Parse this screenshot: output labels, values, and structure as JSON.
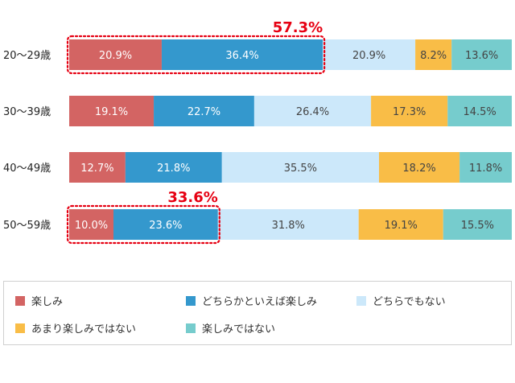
{
  "chart_data": {
    "type": "bar",
    "orientation": "horizontal",
    "stacked": "100%",
    "categories": [
      "20〜29歳",
      "30〜39歳",
      "40〜49歳",
      "50〜59歳"
    ],
    "series": [
      {
        "name": "楽しみ",
        "color": "#d36463",
        "values": [
          20.9,
          19.1,
          12.7,
          10.0
        ]
      },
      {
        "name": "どちらかといえば楽しみ",
        "color": "#3498cd",
        "values": [
          36.4,
          22.7,
          21.8,
          23.6
        ]
      },
      {
        "name": "どちらでもない",
        "color": "#cce8fa",
        "values": [
          20.9,
          26.4,
          35.5,
          31.8
        ]
      },
      {
        "name": "あまり楽しみではない",
        "color": "#f9bd47",
        "values": [
          8.2,
          17.3,
          18.2,
          19.1
        ]
      },
      {
        "name": "楽しみではない",
        "color": "#76cccd",
        "values": [
          13.6,
          14.5,
          11.8,
          15.5
        ]
      }
    ],
    "value_labels": [
      [
        "20.9%",
        "36.4%",
        "20.9%",
        "8.2%",
        "13.6%"
      ],
      [
        "19.1%",
        "22.7%",
        "26.4%",
        "17.3%",
        "14.5%"
      ],
      [
        "12.7%",
        "21.8%",
        "35.5%",
        "18.2%",
        "11.8%"
      ],
      [
        "10.0%",
        "23.6%",
        "31.8%",
        "19.1%",
        "15.5%"
      ]
    ],
    "highlights": [
      {
        "category_index": 0,
        "series_indices": [
          0,
          1
        ],
        "label": "57.3%"
      },
      {
        "category_index": 3,
        "series_indices": [
          0,
          1
        ],
        "label": "33.6%"
      }
    ],
    "xlim": [
      0,
      100
    ],
    "legend": "bottom",
    "grid": false
  },
  "colors": {
    "highlight": "#e60012",
    "category_text": "#222222"
  }
}
